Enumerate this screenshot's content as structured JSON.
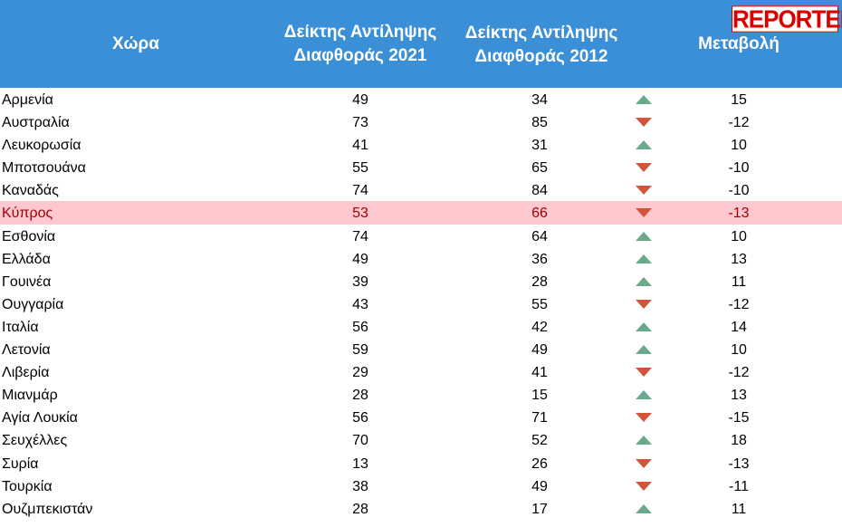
{
  "header": {
    "country": "Χώρα",
    "cpi2021": "Δείκτης Αντίληψης\nΔιαφθοράς 2021",
    "cpi2012": "Δείκτης Αντίληψης\nΔιαφθοράς  2012",
    "change": "Μεταβολή"
  },
  "logo": {
    "text": "REPORTER"
  },
  "colors": {
    "header_bg": "#3a8fd6",
    "highlight_bg": "#ffc7ce",
    "highlight_text": "#9c0006",
    "up": "#6aaa8a",
    "down": "#d0553a",
    "logo": "#d90000"
  },
  "rows": [
    {
      "country": "Αρμενία",
      "cpi2021": "49",
      "cpi2012": "34",
      "trend": "up",
      "change": "15"
    },
    {
      "country": "Αυστραλία",
      "cpi2021": "73",
      "cpi2012": "85",
      "trend": "down",
      "change": "-12"
    },
    {
      "country": "Λευκορωσία",
      "cpi2021": "41",
      "cpi2012": "31",
      "trend": "up",
      "change": "10"
    },
    {
      "country": "Μποτσουάνα",
      "cpi2021": "55",
      "cpi2012": "65",
      "trend": "down",
      "change": "-10"
    },
    {
      "country": "Καναδάς",
      "cpi2021": "74",
      "cpi2012": "84",
      "trend": "down",
      "change": "-10"
    },
    {
      "country": "Κύπρος",
      "cpi2021": "53",
      "cpi2012": "66",
      "trend": "down",
      "change": "-13",
      "highlight": true
    },
    {
      "country": "Εσθονία",
      "cpi2021": "74",
      "cpi2012": "64",
      "trend": "up",
      "change": "10"
    },
    {
      "country": "Ελλάδα",
      "cpi2021": "49",
      "cpi2012": "36",
      "trend": "up",
      "change": "13"
    },
    {
      "country": "Γουινέα",
      "cpi2021": "39",
      "cpi2012": "28",
      "trend": "up",
      "change": "11"
    },
    {
      "country": "Ουγγαρία",
      "cpi2021": "43",
      "cpi2012": "55",
      "trend": "down",
      "change": "-12"
    },
    {
      "country": "Ιταλία",
      "cpi2021": "56",
      "cpi2012": "42",
      "trend": "up",
      "change": "14"
    },
    {
      "country": "Λετονία",
      "cpi2021": "59",
      "cpi2012": "49",
      "trend": "up",
      "change": "10"
    },
    {
      "country": "Λιβερία",
      "cpi2021": "29",
      "cpi2012": "41",
      "trend": "down",
      "change": "-12"
    },
    {
      "country": "Μιανμάρ",
      "cpi2021": "28",
      "cpi2012": "15",
      "trend": "up",
      "change": "13"
    },
    {
      "country": "Αγία Λουκία",
      "cpi2021": "56",
      "cpi2012": "71",
      "trend": "down",
      "change": "-15"
    },
    {
      "country": "Σευχέλλες",
      "cpi2021": "70",
      "cpi2012": "52",
      "trend": "up",
      "change": "18"
    },
    {
      "country": "Συρία",
      "cpi2021": "13",
      "cpi2012": "26",
      "trend": "down",
      "change": "-13"
    },
    {
      "country": "Τουρκία",
      "cpi2021": "38",
      "cpi2012": "49",
      "trend": "down",
      "change": "-11"
    },
    {
      "country": "Ουζμπεκιστάν",
      "cpi2021": "28",
      "cpi2012": "17",
      "trend": "up",
      "change": "11"
    }
  ]
}
